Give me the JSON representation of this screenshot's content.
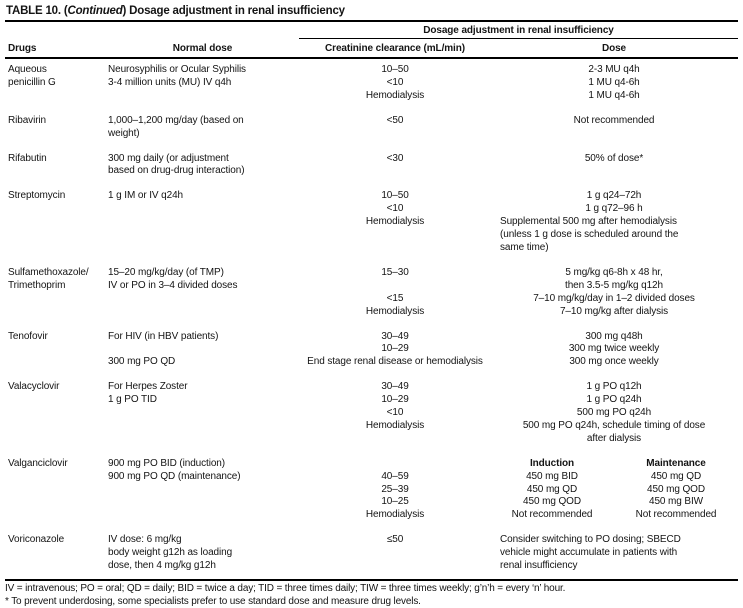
{
  "title": {
    "prefix": "TABLE 10. (",
    "italic": "Continued",
    "suffix": ") Dosage adjustment in renal insufficiency"
  },
  "table": {
    "span_header": "Dosage adjustment in renal insufficiency",
    "columns": {
      "drugs": "Drugs",
      "normal_dose": "Normal dose",
      "creatinine": "Creatinine clearance (mL/min)",
      "dose": "Dose"
    },
    "rows": [
      {
        "drug": [
          "Aqueous",
          "penicillin G"
        ],
        "normal": [
          "Neurosyphilis or Ocular Syphilis",
          "3-4 million units (MU) IV q4h"
        ],
        "cc": [
          "10–50",
          "<10",
          "Hemodialysis"
        ],
        "dose": [
          "2-3 MU q4h",
          "1 MU q4-6h",
          "1 MU q4-6h"
        ]
      },
      {
        "drug": [
          "Ribavirin"
        ],
        "normal": [
          "1,000–1,200 mg/day (based on",
          "weight)"
        ],
        "cc": [
          "<50"
        ],
        "dose": [
          "Not recommended"
        ]
      },
      {
        "drug": [
          "Rifabutin"
        ],
        "normal": [
          "300 mg daily (or adjustment",
          "based on drug-drug interaction)"
        ],
        "cc": [
          "<30"
        ],
        "dose": [
          "50% of dose*"
        ]
      },
      {
        "drug": [
          "Streptomycin"
        ],
        "normal": [
          "1 g IM or IV q24h"
        ],
        "cc": [
          "10–50",
          "<10",
          "Hemodialysis"
        ],
        "dose": [
          "1 g q24–72h",
          "1 g q72–96 h",
          {
            "t": "Supplemental 500 mg after hemodialysis",
            "align": "left"
          },
          {
            "t": "(unless 1 g dose is scheduled around the",
            "align": "left"
          },
          {
            "t": "same time)",
            "align": "left"
          }
        ]
      },
      {
        "drug": [
          "Sulfamethoxazole/",
          "Trimethoprim"
        ],
        "normal": [
          "15–20 mg/kg/day (of TMP)",
          "IV or PO in 3–4 divided doses"
        ],
        "cc": [
          "15–30",
          "",
          "<15",
          "Hemodialysis"
        ],
        "dose": [
          "5 mg/kg q6-8h x 48 hr,",
          "then 3.5-5 mg/kg q12h",
          "7–10 mg/kg/day in 1–2 divided doses",
          "7–10 mg/kg after dialysis"
        ]
      },
      {
        "drug": [
          "Tenofovir"
        ],
        "normal": [
          "For HIV (in HBV patients)",
          "",
          "300 mg PO QD"
        ],
        "cc": [
          "30–49",
          "10–29",
          "End stage renal disease or hemodialysis"
        ],
        "dose": [
          "300 mg q48h",
          "300 mg twice weekly",
          "300 mg once weekly"
        ]
      },
      {
        "drug": [
          "Valacyclovir"
        ],
        "normal": [
          "For Herpes Zoster",
          "1 g PO TID"
        ],
        "cc": [
          "30–49",
          "10–29",
          "<10",
          "Hemodialysis"
        ],
        "dose": [
          "1 g PO q12h",
          "1 g PO q24h",
          "500 mg PO q24h",
          "500 mg PO q24h, schedule timing of dose",
          "after dialysis"
        ]
      },
      {
        "drug": [
          "Valganciclovir"
        ],
        "normal": [
          "900 mg PO BID (induction)",
          "900 mg PO QD (maintenance)"
        ],
        "cc": [
          "",
          "40–59",
          "25–39",
          "10–25",
          "Hemodialysis"
        ],
        "dose_pairs": {
          "headers": [
            "Induction",
            "Maintenance"
          ],
          "rows": [
            [
              "450 mg BID",
              "450 mg QD"
            ],
            [
              "450 mg QD",
              "450 mg QOD"
            ],
            [
              "450 mg QOD",
              "450 mg BIW"
            ],
            [
              "Not recommended",
              "Not recommended"
            ]
          ]
        }
      },
      {
        "drug": [
          "Voriconazole"
        ],
        "normal": [
          "IV dose: 6 mg/kg",
          "body weight g12h as loading",
          "dose, then 4 mg/kg g12h"
        ],
        "cc": [
          "≤50"
        ],
        "dose": [
          {
            "t": "Consider switching to PO dosing; SBECD",
            "align": "left"
          },
          {
            "t": "vehicle might accumulate in patients with",
            "align": "left"
          },
          {
            "t": "renal insufficiency",
            "align": "left"
          }
        ]
      }
    ]
  },
  "footnotes": [
    "IV = intravenous; PO = oral; QD = daily; BID = twice a day; TID = three times daily; TIW = three times weekly; g’n’h = every ‘n’ hour.",
    "* To prevent underdosing, some specialists prefer to use standard dose and measure drug levels."
  ]
}
